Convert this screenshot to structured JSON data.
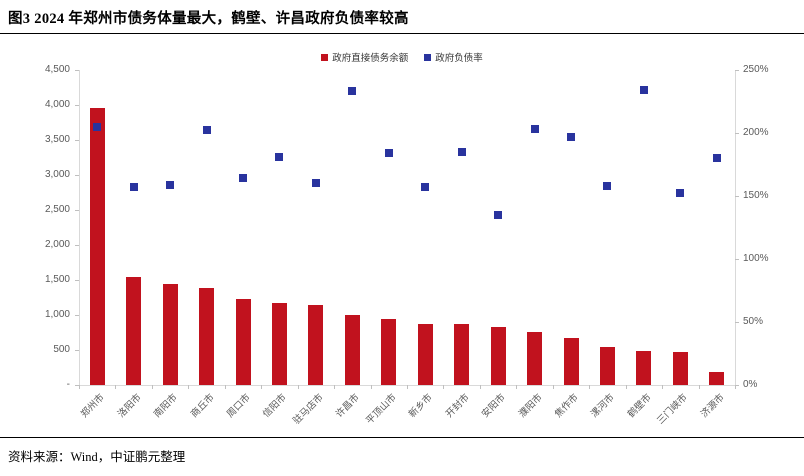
{
  "page": {
    "title": "图3  2024 年郑州市债务体量最大，鹤壁、许昌政府负债率较高",
    "source_note": "资料来源：Wind，中证鹏元整理"
  },
  "legend": {
    "items": [
      {
        "label": "政府直接债务余额",
        "color": "#C1121E",
        "marker": "square"
      },
      {
        "label": "政府负债率",
        "color": "#29339E",
        "marker": "square"
      }
    ]
  },
  "chart_data": {
    "type": "bar",
    "title": "",
    "xlabel": "",
    "ylabel_left": "政府直接债务余额",
    "ylabel_right": "政府负债率",
    "grid": false,
    "legend_position": "top",
    "categories": [
      "郑州市",
      "洛阳市",
      "南阳市",
      "商丘市",
      "周口市",
      "信阳市",
      "驻马店市",
      "许昌市",
      "平顶山市",
      "新乡市",
      "开封市",
      "安阳市",
      "濮阳市",
      "焦作市",
      "漯河市",
      "鹤壁市",
      "三门峡市",
      "济源市"
    ],
    "series": [
      {
        "name": "政府直接债务余额",
        "type": "bar",
        "axis": "left",
        "color": "#C1121E",
        "values": [
          3960,
          1550,
          1450,
          1390,
          1230,
          1170,
          1140,
          1000,
          950,
          875,
          865,
          825,
          755,
          670,
          540,
          485,
          470,
          185
        ]
      },
      {
        "name": "政府负债率",
        "type": "scatter",
        "axis": "right",
        "color": "#29339E",
        "values_pct": [
          205,
          157,
          159,
          202,
          164,
          181,
          160,
          233,
          184,
          157,
          185,
          135,
          203,
          197,
          158,
          234,
          152,
          180
        ]
      }
    ],
    "left_axis": {
      "min": 0,
      "max": 4500,
      "step": 500,
      "tick_labels": [
        "-",
        "500",
        "1,000",
        "1,500",
        "2,000",
        "2,500",
        "3,000",
        "3,500",
        "4,000",
        "4,500"
      ]
    },
    "right_axis": {
      "min_pct": 0,
      "max_pct": 250,
      "step_pct": 50,
      "tick_labels": [
        "0%",
        "50%",
        "100%",
        "150%",
        "200%",
        "250%"
      ]
    }
  }
}
